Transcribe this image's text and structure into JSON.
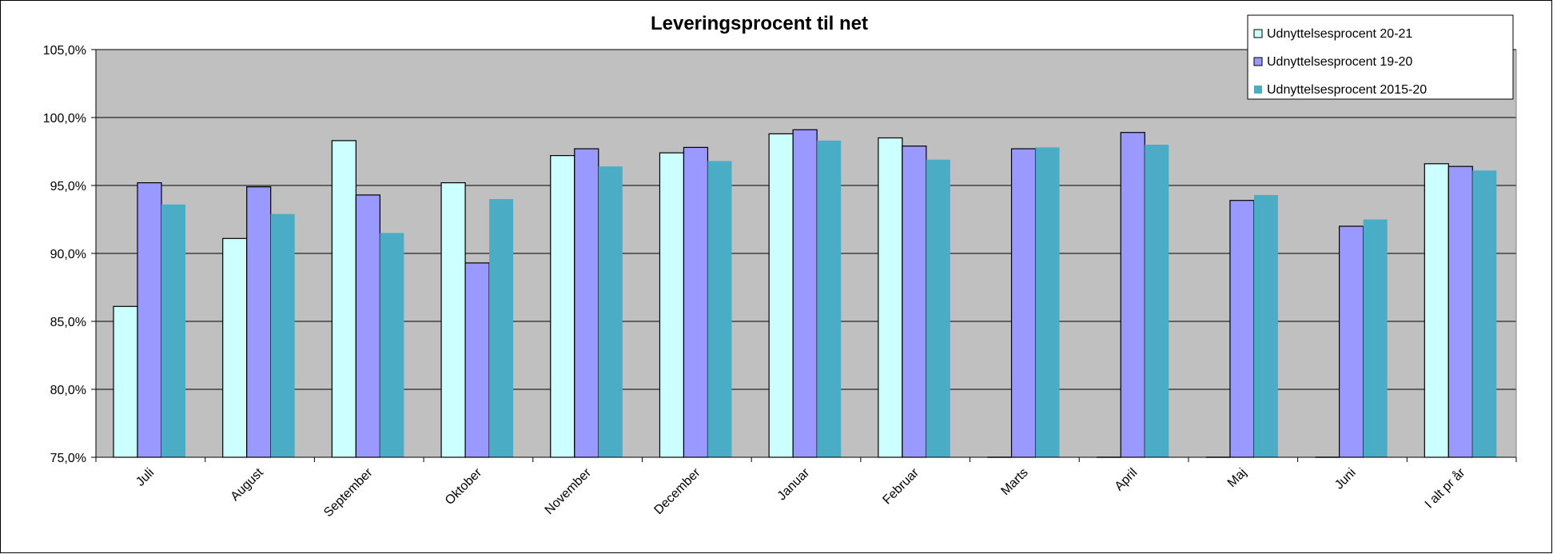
{
  "chart_data": {
    "type": "bar",
    "title": "Leveringsprocent til net",
    "xlabel": "",
    "ylabel": "",
    "ylim": [
      75,
      105
    ],
    "yticks": [
      "75,0%",
      "80,0%",
      "85,0%",
      "90,0%",
      "95,0%",
      "100,0%",
      "105,0%"
    ],
    "ytick_values": [
      75,
      80,
      85,
      90,
      95,
      100,
      105
    ],
    "grid": true,
    "legend_position": "top-right",
    "categories": [
      "Juli",
      "August",
      "September",
      "Oktober",
      "November",
      "December",
      "Januar",
      "Februar",
      "Marts",
      "April",
      "Maj",
      "Juni",
      "I alt pr år"
    ],
    "series": [
      {
        "name": "Udnyttelsesprocent 20-21",
        "color": "#CCFFFF",
        "values": [
          86.1,
          91.1,
          98.3,
          95.2,
          97.2,
          97.4,
          98.8,
          98.5,
          null,
          null,
          null,
          null,
          96.6
        ]
      },
      {
        "name": "Udnyttelsesprocent 19-20",
        "color": "#9999FF",
        "values": [
          95.2,
          94.9,
          94.3,
          89.3,
          97.7,
          97.8,
          99.1,
          97.9,
          97.7,
          98.9,
          93.9,
          92.0,
          96.4
        ]
      },
      {
        "name": "Udnyttelsesprocent 2015-20",
        "color": "#4BACC6",
        "values": [
          93.6,
          92.9,
          91.5,
          94.0,
          96.4,
          96.8,
          98.3,
          96.9,
          97.8,
          98.0,
          94.3,
          92.5,
          96.1
        ]
      }
    ],
    "plot_background": "#C0C0C0"
  }
}
